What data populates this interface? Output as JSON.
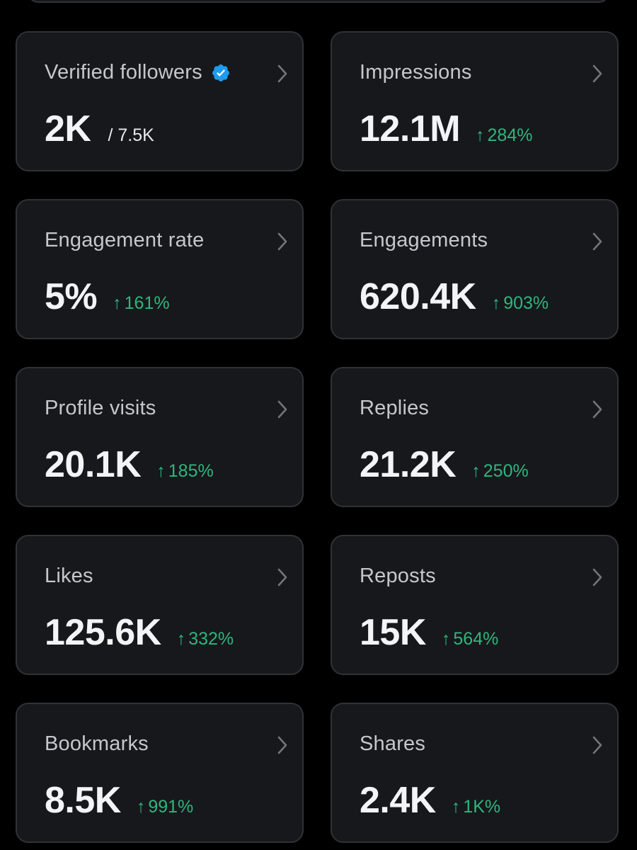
{
  "colors": {
    "background": "#000000",
    "card_background": "#16181c",
    "card_border": "#2f3336",
    "title_text": "#c4c8cc",
    "value_text": "#f2f4f5",
    "positive_change": "#2fb67c",
    "verified_blue": "#1d9bf0"
  },
  "metrics": [
    {
      "title": "Verified followers",
      "value": "2K",
      "sub": "/ 7.5K",
      "verified": true,
      "icon": "chevron-right-icon"
    },
    {
      "title": "Impressions",
      "value": "12.1M",
      "arrow": "↑",
      "change": "284%",
      "icon": "chevron-right-icon"
    },
    {
      "title": "Engagement rate",
      "value": "5%",
      "arrow": "↑",
      "change": "161%",
      "icon": "chevron-right-icon"
    },
    {
      "title": "Engagements",
      "value": "620.4K",
      "arrow": "↑",
      "change": "903%",
      "icon": "chevron-right-icon"
    },
    {
      "title": "Profile visits",
      "value": "20.1K",
      "arrow": "↑",
      "change": "185%",
      "icon": "chevron-right-icon"
    },
    {
      "title": "Replies",
      "value": "21.2K",
      "arrow": "↑",
      "change": "250%",
      "icon": "chevron-right-icon"
    },
    {
      "title": "Likes",
      "value": "125.6K",
      "arrow": "↑",
      "change": "332%",
      "icon": "chevron-right-icon"
    },
    {
      "title": "Reposts",
      "value": "15K",
      "arrow": "↑",
      "change": "564%",
      "icon": "chevron-right-icon"
    },
    {
      "title": "Bookmarks",
      "value": "8.5K",
      "arrow": "↑",
      "change": "991%",
      "icon": "chevron-right-icon"
    },
    {
      "title": "Shares",
      "value": "2.4K",
      "arrow": "↑",
      "change": "1K%",
      "icon": "chevron-right-icon"
    }
  ]
}
